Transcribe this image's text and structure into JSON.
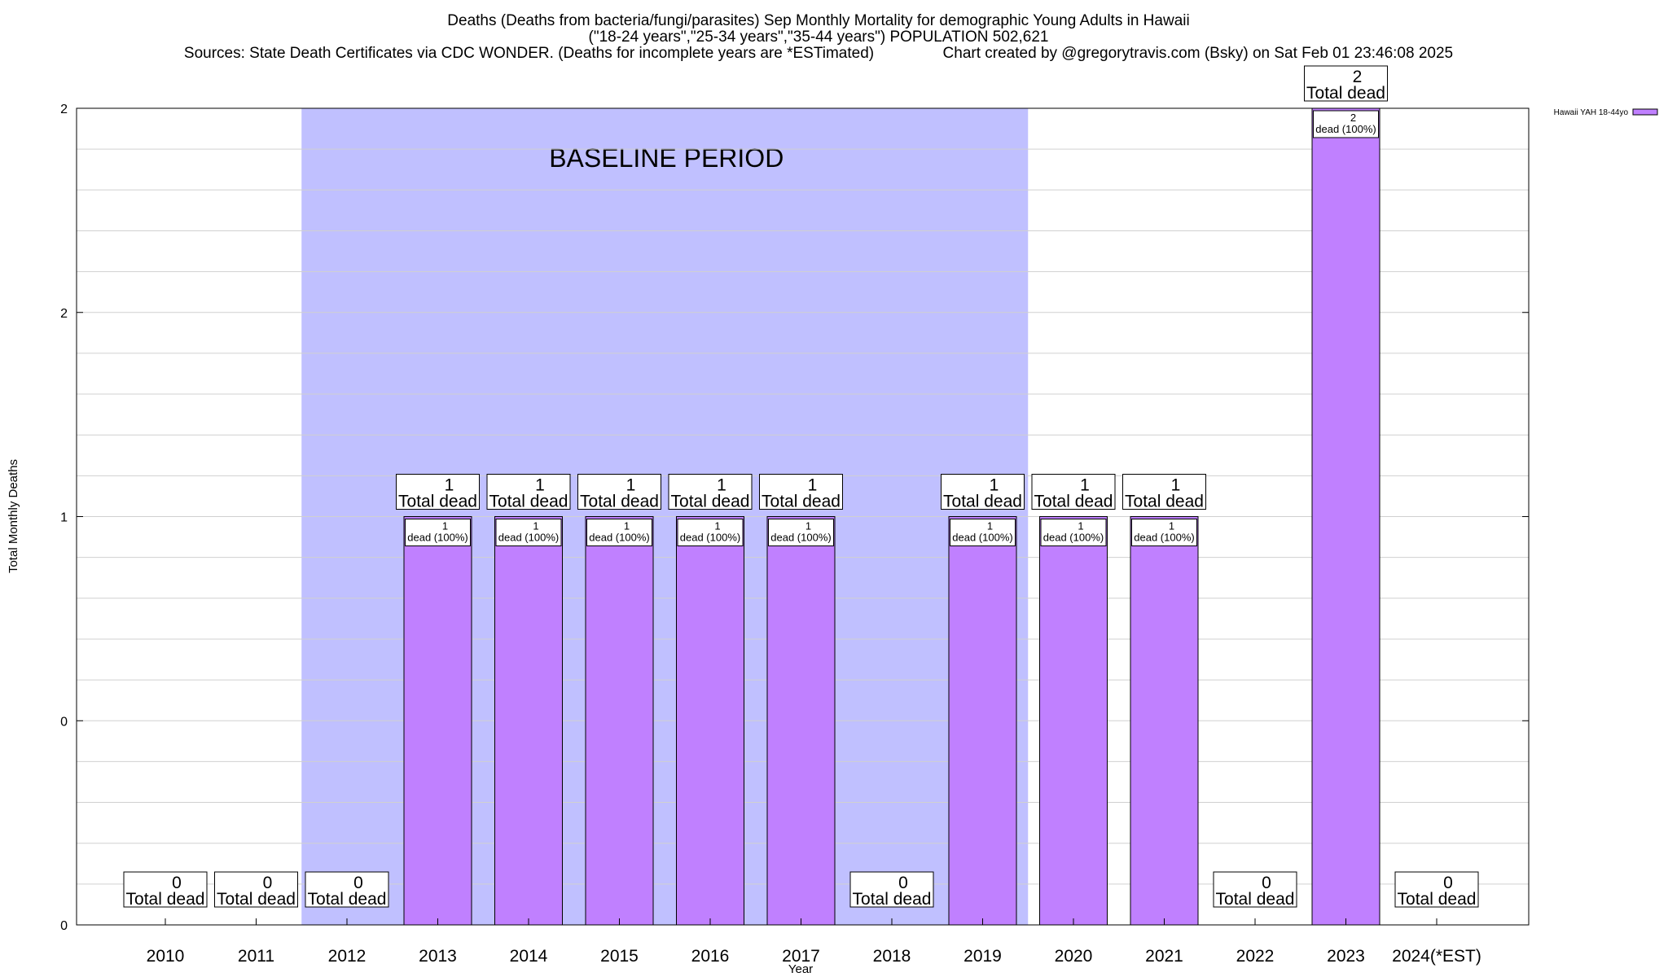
{
  "chart_data": {
    "type": "bar",
    "title_lines": [
      "Deaths (Deaths from bacteria/fungi/parasites) Sep Monthly Mortality for demographic Young Adults in Hawaii",
      "(\"18-24 years\",\"25-34 years\",\"35-44 years\") POPULATION 502,621",
      "Sources: State Death Certificates via CDC WONDER. (Deaths for incomplete years are *ESTimated)                Chart created by @gregorytravis.com (Bsky) on Sat Feb 01 23:46:08 2025"
    ],
    "xlabel": "Year",
    "ylabel": "Total Monthly Deaths",
    "categories": [
      "2010",
      "2011",
      "2012",
      "2013",
      "2014",
      "2015",
      "2016",
      "2017",
      "2018",
      "2019",
      "2020",
      "2021",
      "2022",
      "2023",
      "2024(*EST)"
    ],
    "series": [
      {
        "name": "Hawaii YAH 18-44yo",
        "color": "#c080ff",
        "values": [
          0,
          0,
          0,
          1,
          1,
          1,
          1,
          1,
          0,
          1,
          1,
          1,
          0,
          2,
          0
        ]
      }
    ],
    "total_labels": [
      [
        "0",
        "Total dead"
      ],
      [
        "0",
        "Total dead"
      ],
      [
        "0",
        "Total dead"
      ],
      [
        "1",
        "Total dead"
      ],
      [
        "1",
        "Total dead"
      ],
      [
        "1",
        "Total dead"
      ],
      [
        "1",
        "Total dead"
      ],
      [
        "1",
        "Total dead"
      ],
      [
        "0",
        "Total dead"
      ],
      [
        "1",
        "Total dead"
      ],
      [
        "1",
        "Total dead"
      ],
      [
        "1",
        "Total dead"
      ],
      [
        "0",
        "Total dead"
      ],
      [
        "2",
        "Total dead"
      ],
      [
        "0",
        "Total dead"
      ]
    ],
    "bar_labels": [
      null,
      null,
      null,
      [
        "1",
        "dead (100%)"
      ],
      [
        "1",
        "dead (100%)"
      ],
      [
        "1",
        "dead (100%)"
      ],
      [
        "1",
        "dead (100%)"
      ],
      [
        "1",
        "dead (100%)"
      ],
      null,
      [
        "1",
        "dead (100%)"
      ],
      [
        "1",
        "dead (100%)"
      ],
      [
        "1",
        "dead (100%)"
      ],
      null,
      [
        "2",
        "dead (100%)"
      ],
      null
    ],
    "y_tick_labels": [
      "0",
      "0",
      "1",
      "2",
      "2"
    ],
    "ylim": [
      0,
      2
    ],
    "baseline_period": {
      "label": "BASELINE PERIOD",
      "start": "2012",
      "end": "2019",
      "color": "#c0c0ff"
    },
    "grid": true,
    "legend_position": "top-right",
    "colors": {
      "bar": "#c080ff",
      "baseline": "#c0c0ff",
      "grid": "#d0d0d0"
    }
  }
}
